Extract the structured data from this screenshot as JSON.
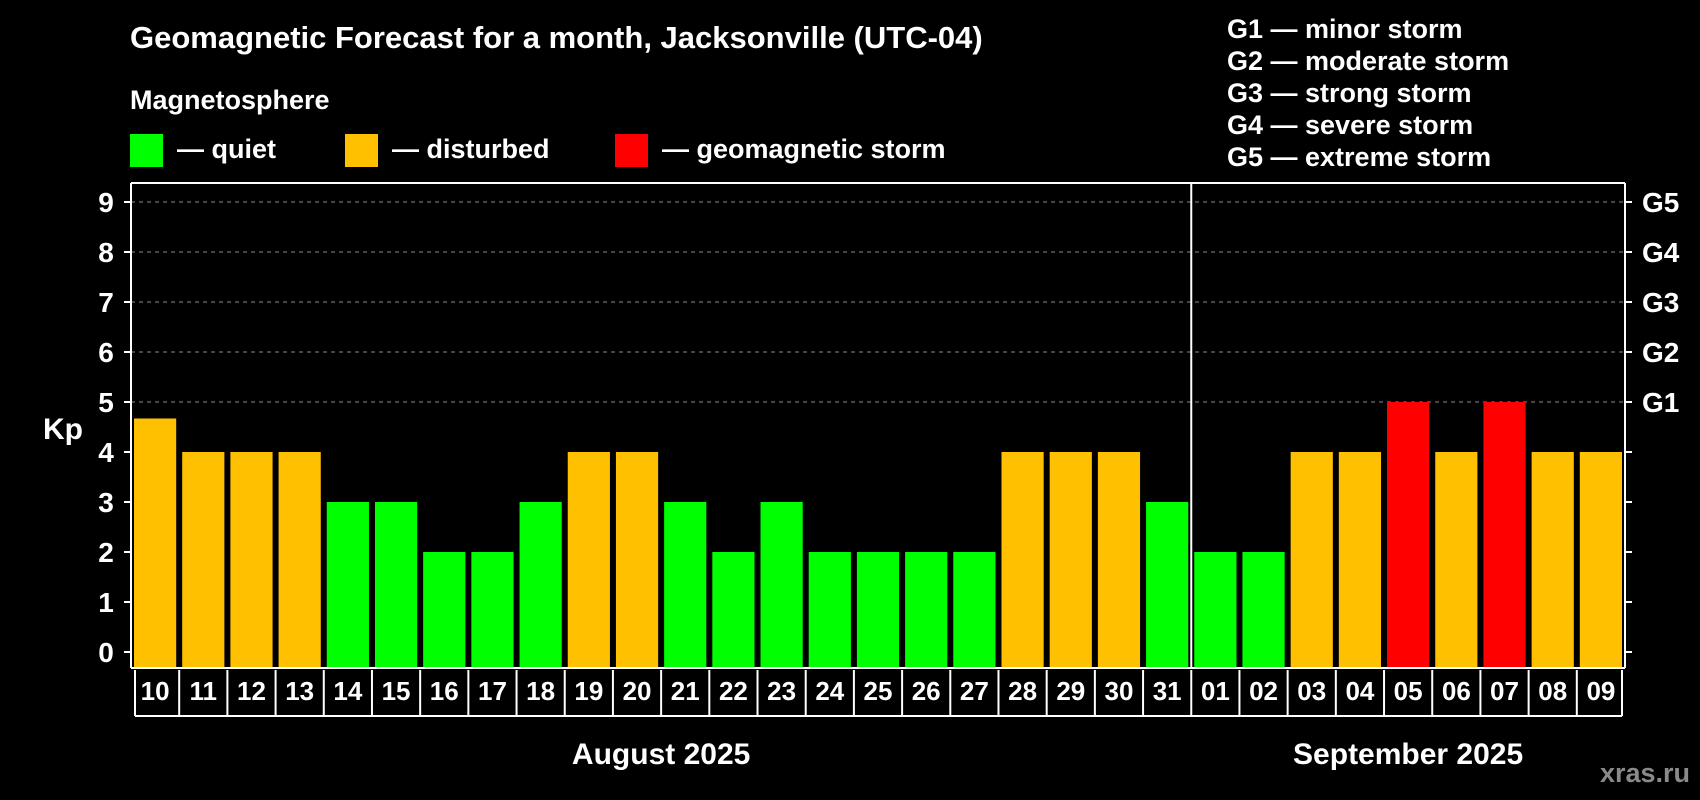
{
  "chart_data": {
    "type": "bar",
    "title": "Geomagnetic Forecast for a month, Jacksonville (UTC-04)",
    "subtitle": "Magnetosphere",
    "ylabel": "Kp",
    "ylim": [
      0,
      9
    ],
    "yticks": [
      "0",
      "1",
      "2",
      "3",
      "4",
      "5",
      "6",
      "7",
      "8",
      "9"
    ],
    "right_axis_labels": [
      {
        "kp": 5,
        "label": "G1"
      },
      {
        "kp": 6,
        "label": "G2"
      },
      {
        "kp": 7,
        "label": "G3"
      },
      {
        "kp": 8,
        "label": "G4"
      },
      {
        "kp": 9,
        "label": "G5"
      }
    ],
    "grid": "dashed horizontal at Kp 5-9",
    "categories": [
      "10",
      "11",
      "12",
      "13",
      "14",
      "15",
      "16",
      "17",
      "18",
      "19",
      "20",
      "21",
      "22",
      "23",
      "24",
      "25",
      "26",
      "27",
      "28",
      "29",
      "30",
      "31",
      "01",
      "02",
      "03",
      "04",
      "05",
      "06",
      "07",
      "08",
      "09"
    ],
    "values": [
      4.67,
      4,
      4,
      4,
      3,
      3,
      2,
      2,
      3,
      4,
      4,
      3,
      2,
      3,
      2,
      2,
      2,
      2,
      4,
      4,
      4,
      3,
      2,
      2,
      4,
      4,
      5,
      4,
      5,
      4,
      4
    ],
    "status": [
      "disturbed",
      "disturbed",
      "disturbed",
      "disturbed",
      "quiet",
      "quiet",
      "quiet",
      "quiet",
      "quiet",
      "disturbed",
      "disturbed",
      "quiet",
      "quiet",
      "quiet",
      "quiet",
      "quiet",
      "quiet",
      "quiet",
      "disturbed",
      "disturbed",
      "disturbed",
      "quiet",
      "quiet",
      "quiet",
      "disturbed",
      "disturbed",
      "storm",
      "disturbed",
      "storm",
      "disturbed",
      "disturbed"
    ],
    "months": [
      {
        "label": "August 2025",
        "start_index": 0,
        "count": 22
      },
      {
        "label": "September 2025",
        "start_index": 22,
        "count": 9
      }
    ],
    "legend": [
      {
        "key": "quiet",
        "label": "— quiet",
        "color": "#00ff00"
      },
      {
        "key": "disturbed",
        "label": "— disturbed",
        "color": "#ffc000"
      },
      {
        "key": "storm",
        "label": "— geomagnetic storm",
        "color": "#ff0000"
      }
    ],
    "g_legend": [
      "G1 — minor storm",
      "G2 — moderate storm",
      "G3 — strong storm",
      "G4 — severe storm",
      "G5 — extreme storm"
    ],
    "legend_placement": "top"
  },
  "watermark": "xras.ru",
  "colors": {
    "background": "#000000",
    "axis": "#ffffff",
    "grid": "#888888"
  }
}
